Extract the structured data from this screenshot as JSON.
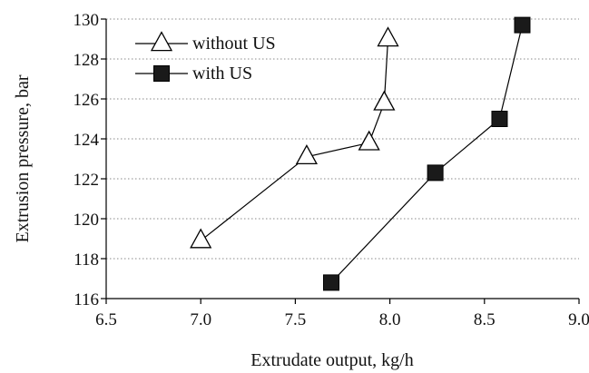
{
  "chart_data": {
    "type": "line",
    "title": "",
    "xlabel": "Extrudate output, kg/h",
    "ylabel": "Extrusion pressure, bar",
    "xlim": [
      6.5,
      9.0
    ],
    "ylim": [
      116,
      130
    ],
    "x_ticks": [
      6.5,
      7.0,
      7.5,
      8.0,
      8.5,
      9.0
    ],
    "x_tick_labels": [
      "6.5",
      "7.0",
      "7.5",
      "8.0",
      "8.5",
      "9.0"
    ],
    "y_ticks": [
      116,
      118,
      120,
      122,
      124,
      126,
      128,
      130
    ],
    "y_tick_labels": [
      "116",
      "118",
      "120",
      "122",
      "124",
      "126",
      "128",
      "130"
    ],
    "grid": "horizontal dotted",
    "legend_position": "top-left",
    "series": [
      {
        "name": "without US",
        "marker": "open-triangle",
        "color": "#000000",
        "x": [
          7.0,
          7.56,
          7.89,
          7.97,
          7.99
        ],
        "y": [
          118.9,
          123.1,
          123.8,
          125.8,
          129.0
        ]
      },
      {
        "name": "with US",
        "marker": "filled-square",
        "color": "#000000",
        "x": [
          7.69,
          8.24,
          8.58,
          8.7
        ],
        "y": [
          116.8,
          122.3,
          125.0,
          129.7
        ]
      }
    ]
  }
}
